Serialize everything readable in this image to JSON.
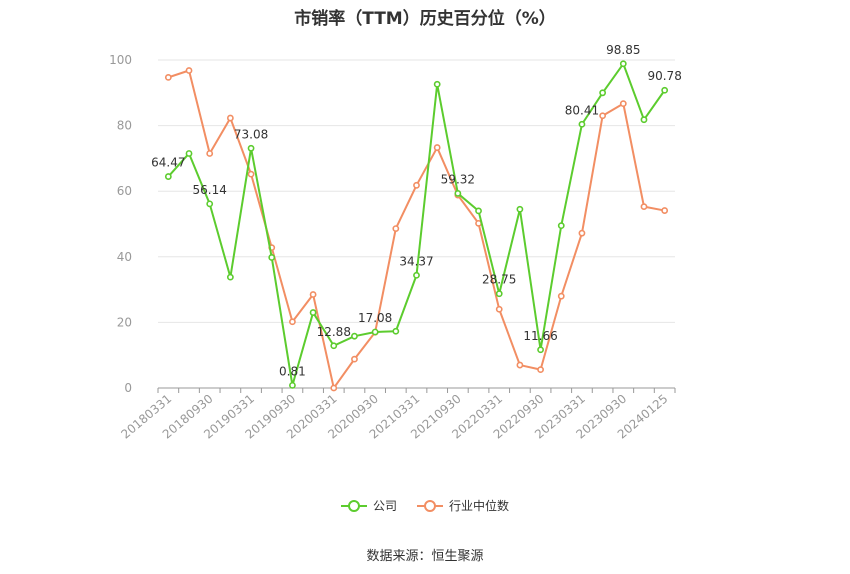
{
  "title": "市销率（TTM）历史百分位（%）",
  "source": "数据来源：恒生聚源",
  "colors": {
    "company": "#5ccc2e",
    "industry": "#f28e63",
    "grid": "#e6e6e6",
    "axis": "#999999",
    "text": "#999999"
  },
  "legend": [
    {
      "name": "公司",
      "color": "#5ccc2e"
    },
    {
      "name": "行业中位数",
      "color": "#f28e63"
    }
  ],
  "chart_data": {
    "type": "line",
    "title": "市销率（TTM）历史百分位（%）",
    "ylim": [
      0,
      100
    ],
    "yticks": [
      0,
      20,
      40,
      60,
      80,
      100
    ],
    "grid": true,
    "legend_position": "bottom",
    "x": [
      "20180331",
      "20180630",
      "20180930",
      "20181231",
      "20190331",
      "20190630",
      "20190930",
      "20191231",
      "20200331",
      "20200630",
      "20200930",
      "20201231",
      "20210331",
      "20210630",
      "20210930",
      "20211231",
      "20220331",
      "20220630",
      "20220930",
      "20221231",
      "20230331",
      "20230630",
      "20230930",
      "20231231",
      "20240125"
    ],
    "xticklabels": [
      "20180331",
      "20180930",
      "20190331",
      "20190930",
      "20200331",
      "20200930",
      "20210331",
      "20210930",
      "20220331",
      "20220930",
      "20230331",
      "20230930",
      "20240125"
    ],
    "series": [
      {
        "name": "公司",
        "values": [
          64.47,
          71.5,
          56.14,
          33.8,
          73.08,
          39.8,
          0.81,
          23.0,
          12.88,
          15.8,
          17.08,
          17.3,
          34.37,
          92.6,
          59.32,
          54.0,
          28.75,
          54.5,
          11.66,
          49.5,
          80.41,
          90.0,
          98.85,
          81.8,
          90.78
        ],
        "labels": {
          "0": "64.47",
          "2": "56.14",
          "4": "73.08",
          "6": "0.81",
          "8": "12.88",
          "10": "17.08",
          "12": "34.37",
          "14": "59.32",
          "16": "28.75",
          "18": "11.66",
          "20": "80.41",
          "22": "98.85",
          "24": "90.78"
        }
      },
      {
        "name": "行业中位数",
        "values": [
          94.7,
          96.8,
          71.5,
          82.3,
          65.2,
          42.8,
          20.2,
          28.5,
          0.0,
          8.8,
          17.0,
          48.6,
          61.8,
          73.3,
          58.8,
          50.2,
          24.0,
          7.0,
          5.6,
          28.0,
          47.2,
          83.0,
          86.7,
          55.3,
          54.1
        ]
      }
    ]
  }
}
